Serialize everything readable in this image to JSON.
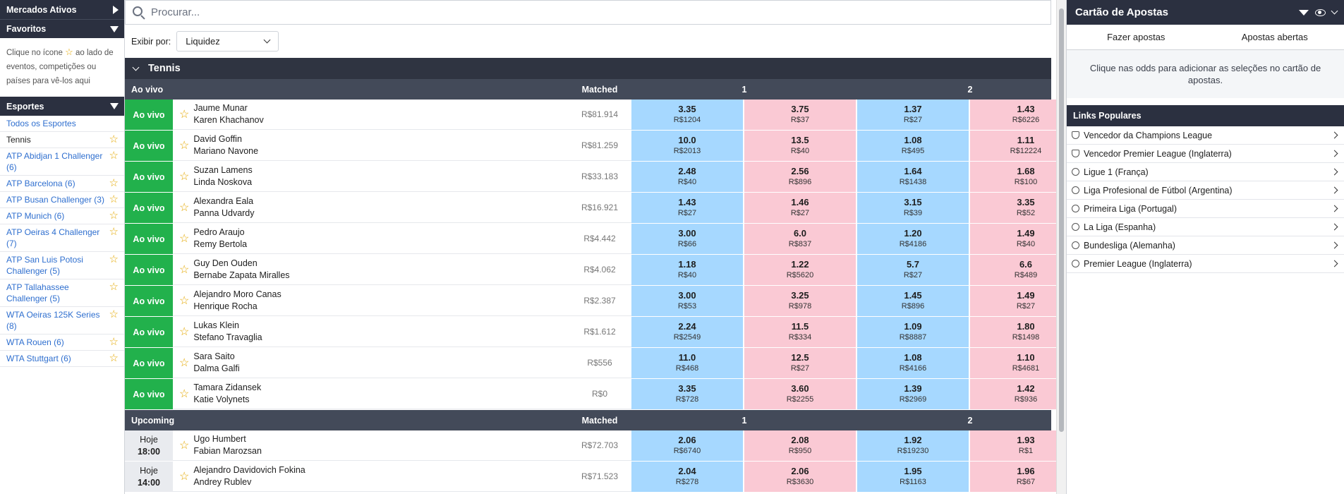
{
  "left": {
    "mercados": "Mercados Ativos",
    "favoritos": "Favoritos",
    "fav_info_1": "Clique no ícone",
    "fav_info_2": "ao lado de eventos, competições ou países para vê-los aqui",
    "esportes": "Esportes",
    "items": [
      {
        "label": "Todos os Esportes",
        "star": false,
        "link": true
      },
      {
        "label": "Tennis",
        "star": true,
        "link": false
      },
      {
        "label": "ATP Abidjan 1 Challenger (6)",
        "star": true,
        "link": true
      },
      {
        "label": "ATP Barcelona (6)",
        "star": true,
        "link": true
      },
      {
        "label": "ATP Busan Challenger (3)",
        "star": true,
        "link": true
      },
      {
        "label": "ATP Munich (6)",
        "star": true,
        "link": true
      },
      {
        "label": "ATP Oeiras 4 Challenger (7)",
        "star": true,
        "link": true
      },
      {
        "label": "ATP San Luis Potosi Challenger (5)",
        "star": true,
        "link": true
      },
      {
        "label": "ATP Tallahassee Challenger (5)",
        "star": true,
        "link": true
      },
      {
        "label": "WTA Oeiras 125K Series (8)",
        "star": true,
        "link": true
      },
      {
        "label": "WTA Rouen (6)",
        "star": true,
        "link": true
      },
      {
        "label": "WTA Stuttgart (6)",
        "star": true,
        "link": true
      }
    ]
  },
  "search": {
    "placeholder": "Procurar..."
  },
  "filter": {
    "label": "Exibir por:",
    "value": "Liquidez"
  },
  "sport": "Tennis",
  "live": {
    "section": "Ao vivo",
    "matched_hdr": "Matched",
    "col1": "1",
    "col2": "2",
    "status": "Ao vivo",
    "rows": [
      {
        "p1": "Jaume Munar",
        "p2": "Karen Khachanov",
        "matched": "R$81.914",
        "odds": [
          [
            "3.35",
            "R$1204"
          ],
          [
            "3.75",
            "R$37"
          ],
          [
            "1.37",
            "R$27"
          ],
          [
            "1.43",
            "R$6226"
          ]
        ]
      },
      {
        "p1": "David Goffin",
        "p2": "Mariano Navone",
        "matched": "R$81.259",
        "odds": [
          [
            "10.0",
            "R$2013"
          ],
          [
            "13.5",
            "R$40"
          ],
          [
            "1.08",
            "R$495"
          ],
          [
            "1.11",
            "R$12224"
          ]
        ]
      },
      {
        "p1": "Suzan Lamens",
        "p2": "Linda Noskova",
        "matched": "R$33.183",
        "odds": [
          [
            "2.48",
            "R$40"
          ],
          [
            "2.56",
            "R$896"
          ],
          [
            "1.64",
            "R$1438"
          ],
          [
            "1.68",
            "R$100"
          ]
        ]
      },
      {
        "p1": "Alexandra Eala",
        "p2": "Panna Udvardy",
        "matched": "R$16.921",
        "odds": [
          [
            "1.43",
            "R$27"
          ],
          [
            "1.46",
            "R$27"
          ],
          [
            "3.15",
            "R$39"
          ],
          [
            "3.35",
            "R$52"
          ]
        ]
      },
      {
        "p1": "Pedro Araujo",
        "p2": "Remy Bertola",
        "matched": "R$4.442",
        "odds": [
          [
            "3.00",
            "R$66"
          ],
          [
            "6.0",
            "R$837"
          ],
          [
            "1.20",
            "R$4186"
          ],
          [
            "1.49",
            "R$40"
          ]
        ]
      },
      {
        "p1": "Guy Den Ouden",
        "p2": "Bernabe Zapata Miralles",
        "matched": "R$4.062",
        "odds": [
          [
            "1.18",
            "R$40"
          ],
          [
            "1.22",
            "R$5620"
          ],
          [
            "5.7",
            "R$27"
          ],
          [
            "6.6",
            "R$489"
          ]
        ]
      },
      {
        "p1": "Alejandro Moro Canas",
        "p2": "Henrique Rocha",
        "matched": "R$2.387",
        "odds": [
          [
            "3.00",
            "R$53"
          ],
          [
            "3.25",
            "R$978"
          ],
          [
            "1.45",
            "R$896"
          ],
          [
            "1.49",
            "R$27"
          ]
        ]
      },
      {
        "p1": "Lukas Klein",
        "p2": "Stefano Travaglia",
        "matched": "R$1.612",
        "odds": [
          [
            "2.24",
            "R$2549"
          ],
          [
            "11.5",
            "R$334"
          ],
          [
            "1.09",
            "R$8887"
          ],
          [
            "1.80",
            "R$1498"
          ]
        ]
      },
      {
        "p1": "Sara Saito",
        "p2": "Dalma Galfi",
        "matched": "R$556",
        "odds": [
          [
            "11.0",
            "R$468"
          ],
          [
            "12.5",
            "R$27"
          ],
          [
            "1.08",
            "R$4166"
          ],
          [
            "1.10",
            "R$4681"
          ]
        ]
      },
      {
        "p1": "Tamara Zidansek",
        "p2": "Katie Volynets",
        "matched": "R$0",
        "odds": [
          [
            "3.35",
            "R$728"
          ],
          [
            "3.60",
            "R$2255"
          ],
          [
            "1.39",
            "R$2969"
          ],
          [
            "1.42",
            "R$936"
          ]
        ]
      }
    ]
  },
  "upcoming": {
    "section": "Upcoming",
    "matched_hdr": "Matched",
    "col1": "1",
    "col2": "2",
    "rows": [
      {
        "day": "Hoje",
        "time": "18:00",
        "p1": "Ugo Humbert",
        "p2": "Fabian Marozsan",
        "matched": "R$72.703",
        "odds": [
          [
            "2.06",
            "R$6740"
          ],
          [
            "2.08",
            "R$950"
          ],
          [
            "1.92",
            "R$19230"
          ],
          [
            "1.93",
            "R$1"
          ]
        ]
      },
      {
        "day": "Hoje",
        "time": "14:00",
        "p1": "Alejandro Davidovich Fokina",
        "p2": "Andrey Rublev",
        "matched": "R$71.523",
        "odds": [
          [
            "2.04",
            "R$278"
          ],
          [
            "2.06",
            "R$3630"
          ],
          [
            "1.95",
            "R$1163"
          ],
          [
            "1.96",
            "R$67"
          ]
        ]
      }
    ]
  },
  "right": {
    "title": "Cartão de Apostas",
    "tab1": "Fazer apostas",
    "tab2": "Apostas abertas",
    "info": "Clique nas odds para adicionar as seleções no cartão de apostas.",
    "links_title": "Links Populares",
    "links": [
      {
        "label": "Vencedor da Champions League",
        "icon": "shield-icon"
      },
      {
        "label": "Vencedor Premier League (Inglaterra)",
        "icon": "shield-icon"
      },
      {
        "label": "Ligue 1 (França)",
        "icon": "soccer-ball-icon"
      },
      {
        "label": "Liga Profesional de Fútbol (Argentina)",
        "icon": "soccer-ball-icon"
      },
      {
        "label": "Primeira Liga (Portugal)",
        "icon": "soccer-ball-icon"
      },
      {
        "label": "La Liga (Espanha)",
        "icon": "soccer-ball-icon"
      },
      {
        "label": "Bundesliga (Alemanha)",
        "icon": "soccer-ball-icon"
      },
      {
        "label": "Premier League (Inglaterra)",
        "icon": "soccer-ball-icon"
      }
    ]
  },
  "colors": {
    "live": "#22b14c",
    "back": "#a6d8ff",
    "lay": "#fac9d4",
    "header": "#2b3040",
    "star": "#e4a800",
    "link": "#2f6fcf"
  }
}
